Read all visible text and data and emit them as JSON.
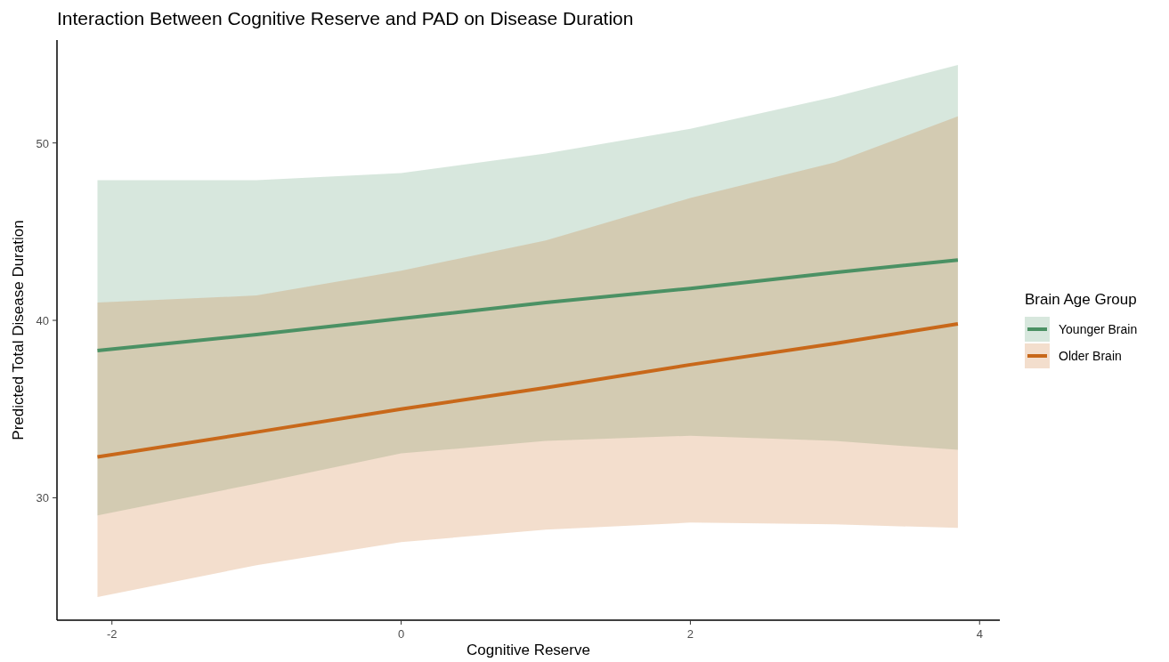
{
  "chart_data": {
    "type": "line",
    "title": "Interaction Between Cognitive Reserve and PAD on Disease Duration",
    "xlabel": "Cognitive Reserve",
    "ylabel": "Predicted Total Disease Duration",
    "legend_title": "Brain Age Group",
    "legend": "right",
    "grid": false,
    "line_style": "solid",
    "x": [
      -2.1,
      -1,
      0,
      1,
      2,
      3,
      3.85
    ],
    "xlim": [
      -2.38,
      4.14
    ],
    "xticks": [
      -2,
      0,
      2,
      4
    ],
    "ylim": [
      23.1,
      55.8
    ],
    "yticks": [
      30,
      40,
      50
    ],
    "series": [
      {
        "name": "Younger Brain",
        "color": "#4b9164",
        "values": [
          38.3,
          39.2,
          40.1,
          41.0,
          41.8,
          42.7,
          43.4
        ],
        "lower": [
          29.0,
          30.8,
          32.5,
          33.2,
          33.5,
          33.2,
          32.7
        ],
        "upper": [
          47.9,
          47.9,
          48.3,
          49.4,
          50.8,
          52.6,
          54.4
        ]
      },
      {
        "name": "Older Brain",
        "color": "#c8681a",
        "values": [
          32.3,
          33.7,
          35.0,
          36.2,
          37.5,
          38.7,
          39.8
        ],
        "lower": [
          24.4,
          26.2,
          27.5,
          28.2,
          28.6,
          28.5,
          28.3
        ],
        "upper": [
          41.0,
          41.4,
          42.8,
          44.5,
          46.9,
          48.9,
          51.5
        ]
      }
    ]
  }
}
